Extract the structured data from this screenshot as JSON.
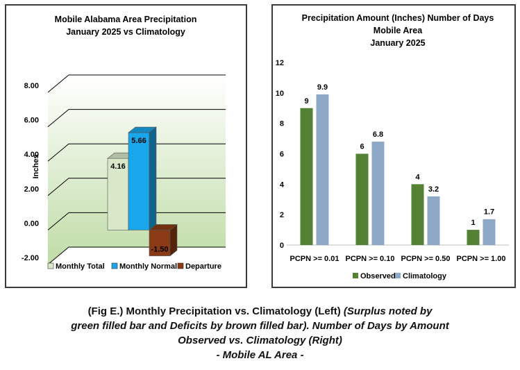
{
  "chart_data": [
    {
      "type": "bar",
      "title": "Mobile Alabama Area Precipitation",
      "subtitle": "January 2025 vs Climatology",
      "xlabel": "",
      "ylabel": "Inches",
      "ylim": [
        -2,
        8
      ],
      "yticks": [
        "-2.00",
        "0.00",
        "2.00",
        "4.00",
        "6.00",
        "8.00"
      ],
      "tick_values": [
        -2,
        0,
        2,
        4,
        6,
        8
      ],
      "series": [
        {
          "name": "Monthly Total",
          "value": 4.16,
          "label": "4.16",
          "color": "#d8e8c9"
        },
        {
          "name": "Monthly Normal",
          "value": 5.66,
          "label": "5.66",
          "color": "#19a6ea"
        },
        {
          "name": "Departure",
          "value": -1.5,
          "label": "-1.50",
          "color": "#8a3a14"
        }
      ],
      "grid": true,
      "legend": "bottom",
      "style": "3d"
    },
    {
      "type": "bar",
      "title": "Precipitation Amount (Inches) Number of Days",
      "subtitle": "Mobile Area",
      "subtitle2": "January 2025",
      "xlabel": "",
      "ylabel": "",
      "ylim": [
        0,
        12
      ],
      "yticks": [
        "0",
        "2",
        "4",
        "6",
        "8",
        "10",
        "12"
      ],
      "tick_values": [
        0,
        2,
        4,
        6,
        8,
        10,
        12
      ],
      "categories": [
        "PCPN >= 0.01",
        "PCPN >= 0.10",
        "PCPN >= 0.50",
        "PCPN >= 1.00"
      ],
      "series": [
        {
          "name": "Observed",
          "values": [
            9,
            6,
            4,
            1
          ],
          "labels": [
            "9",
            "6",
            "4",
            "1"
          ],
          "color": "#548235"
        },
        {
          "name": "Climatology",
          "values": [
            9.9,
            6.8,
            3.2,
            1.7
          ],
          "labels": [
            "9.9",
            "6.8",
            "3.2",
            "1.7"
          ],
          "color": "#8ea9c8"
        }
      ],
      "grid": false,
      "legend": "bottom"
    }
  ],
  "caption": {
    "line1_bold": "(Fig E.) Monthly Precipitation vs. Climatology (Left)",
    "line1_italic": "(Surplus noted by",
    "line2": "green filled bar and Deficits by brown filled bar). Number of Days by Amount",
    "line3": "Observed vs. Climatology (Right)",
    "line4": "- Mobile AL Area -"
  }
}
